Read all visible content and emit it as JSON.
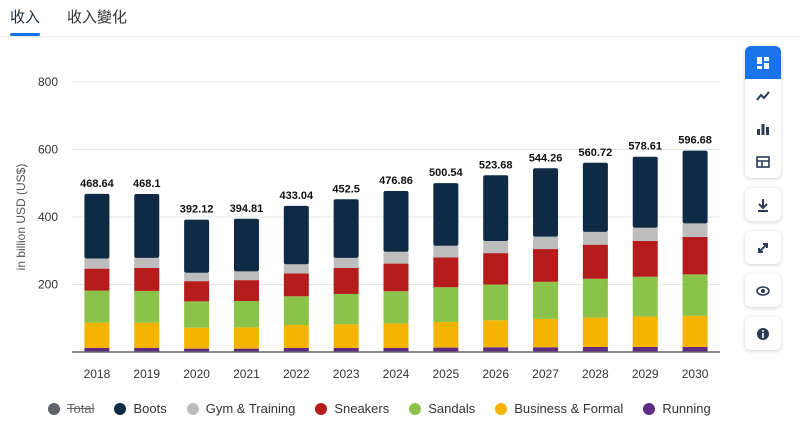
{
  "tabs": [
    {
      "label": "收入",
      "active": true
    },
    {
      "label": "收入變化",
      "active": false
    }
  ],
  "toolbar": {
    "icons": [
      "dashboard-icon",
      "line-chart-icon",
      "bar-chart-icon",
      "table-icon",
      "download-icon",
      "expand-icon",
      "eye-icon",
      "info-icon"
    ]
  },
  "colors": {
    "accent": "#1a73e8",
    "Total": "#5f6368",
    "Boots": "#0f2a44",
    "Gym & Training": "#bdbdbd",
    "Sneakers": "#b71c1c",
    "Sandals": "#8bc34a",
    "Business & Formal": "#f4b400",
    "Running": "#5e2a84"
  },
  "chart_data": {
    "type": "bar",
    "stacked": true,
    "ylabel": "in billion USD (US$)",
    "xlabel": "",
    "ylim": [
      0,
      800
    ],
    "yticks": [
      200,
      400,
      600,
      800
    ],
    "grid": true,
    "legend_position": "bottom",
    "categories": [
      "2018",
      "2019",
      "2020",
      "2021",
      "2022",
      "2023",
      "2024",
      "2025",
      "2026",
      "2027",
      "2028",
      "2029",
      "2030"
    ],
    "totals": [
      468.64,
      468.1,
      392.12,
      394.81,
      433.04,
      452.5,
      476.86,
      500.54,
      523.68,
      544.26,
      560.72,
      578.61,
      596.68
    ],
    "total_labels": [
      "468.64",
      "468.1",
      "392.12",
      "394.81",
      "433.04",
      "452.5",
      "476.86",
      "500.54",
      "523.68",
      "544.26",
      "560.72",
      "578.61",
      "596.68"
    ],
    "legend_entries": [
      "Total",
      "Boots",
      "Gym & Training",
      "Sneakers",
      "Sandals",
      "Business & Formal",
      "Running"
    ],
    "series": [
      {
        "name": "Running",
        "values": [
          12,
          12,
          10,
          10,
          12,
          12,
          12,
          13,
          14,
          14,
          15,
          15,
          15
        ]
      },
      {
        "name": "Business & Formal",
        "values": [
          75,
          75,
          62,
          63,
          68,
          70,
          73,
          76,
          80,
          84,
          87,
          90,
          92
        ]
      },
      {
        "name": "Sandals",
        "values": [
          95,
          94,
          78,
          78,
          85,
          90,
          95,
          103,
          106,
          110,
          115,
          118,
          123
        ]
      },
      {
        "name": "Sneakers",
        "values": [
          65,
          68,
          60,
          62,
          68,
          77,
          82,
          88,
          93,
          97,
          101,
          106,
          111
        ]
      },
      {
        "name": "Gym & Training",
        "values": [
          30,
          30,
          25,
          26,
          27,
          30,
          35,
          35,
          36,
          37,
          38,
          39,
          40
        ]
      },
      {
        "name": "Boots",
        "values": [
          191.64,
          189.1,
          157.12,
          155.81,
          173.04,
          173.5,
          179.86,
          185.54,
          194.68,
          202.26,
          204.72,
          210.61,
          215.68
        ]
      }
    ]
  }
}
